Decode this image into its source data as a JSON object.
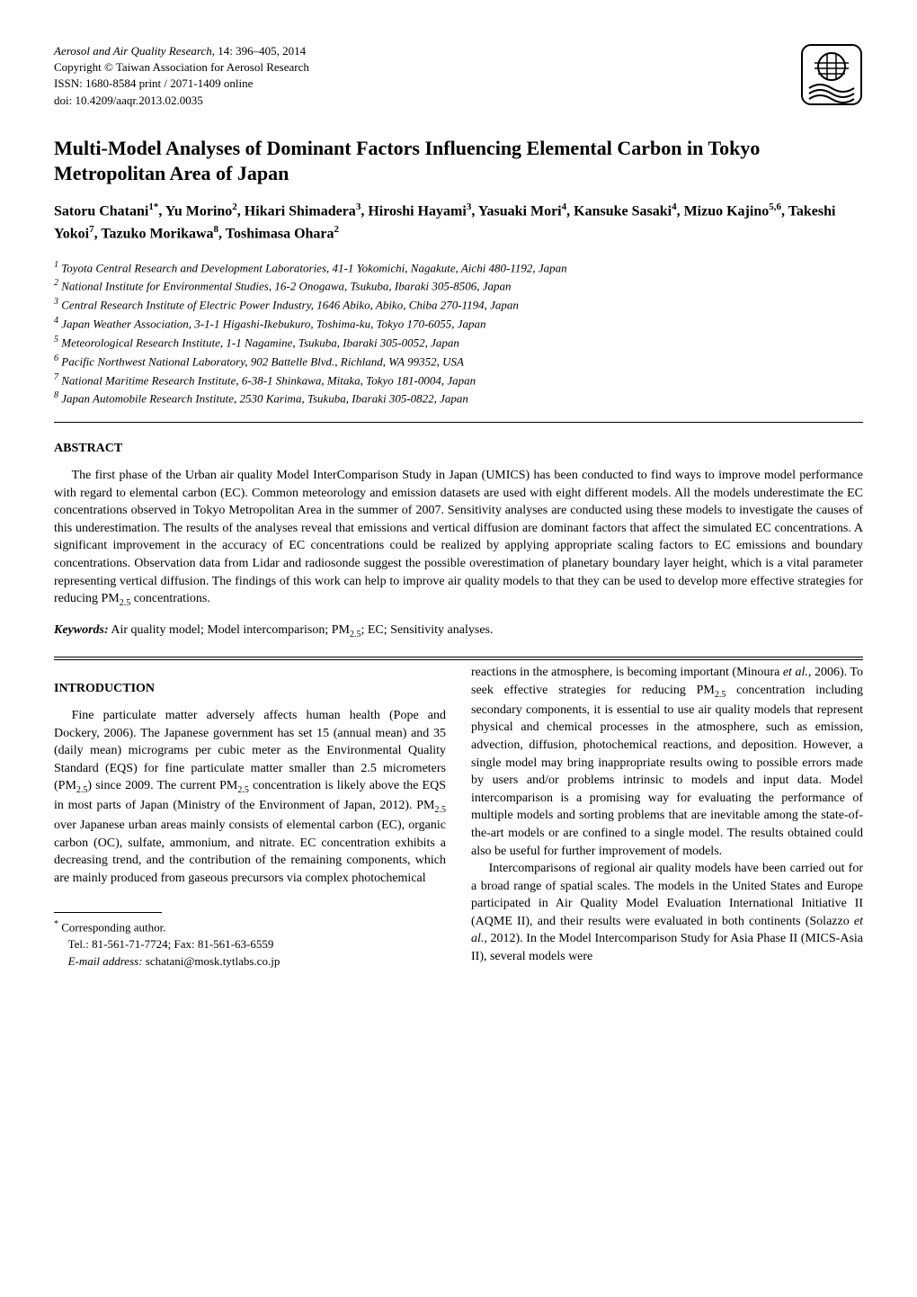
{
  "meta": {
    "journal_ref": "Aerosol and Air Quality Research",
    "vol_pages": ", 14: 396–405, 2014",
    "copyright": "Copyright © Taiwan Association for Aerosol Research",
    "issn": "ISSN: 1680-8584 print / 2071-1409 online",
    "doi": "doi: 10.4209/aaqr.2013.02.0035"
  },
  "title": "Multi-Model Analyses of Dominant Factors Influencing Elemental Carbon in Tokyo Metropolitan Area of Japan",
  "authors_html": "Satoru Chatani<sup>1*</sup>, Yu Morino<sup>2</sup>, Hikari Shimadera<sup>3</sup>, Hiroshi Hayami<sup>3</sup>, Yasuaki Mori<sup>4</sup>, Kansuke Sasaki<sup>4</sup>, Mizuo Kajino<sup>5,6</sup>, Takeshi Yokoi<sup>7</sup>, Tazuko Morikawa<sup>8</sup>, Toshimasa Ohara<sup>2</sup>",
  "affiliations": [
    {
      "n": "1",
      "text": "Toyota Central Research and Development Laboratories, 41-1 Yokomichi, Nagakute, Aichi 480-1192, Japan"
    },
    {
      "n": "2",
      "text": "National Institute for Environmental Studies, 16-2 Onogawa, Tsukuba, Ibaraki 305-8506, Japan"
    },
    {
      "n": "3",
      "text": "Central Research Institute of Electric Power Industry, 1646 Abiko, Abiko, Chiba 270-1194, Japan"
    },
    {
      "n": "4",
      "text": "Japan Weather Association, 3-1-1 Higashi-Ikebukuro, Toshima-ku, Tokyo 170-6055, Japan"
    },
    {
      "n": "5",
      "text": "Meteorological Research Institute, 1-1 Nagamine, Tsukuba, Ibaraki 305-0052, Japan"
    },
    {
      "n": "6",
      "text": "Pacific Northwest National Laboratory, 902 Battelle Blvd., Richland, WA 99352, USA"
    },
    {
      "n": "7",
      "text": "National Maritime Research Institute, 6-38-1 Shinkawa, Mitaka, Tokyo 181-0004, Japan"
    },
    {
      "n": "8",
      "text": "Japan Automobile Research Institute, 2530 Karima, Tsukuba, Ibaraki 305-0822, Japan"
    }
  ],
  "headings": {
    "abstract": "ABSTRACT",
    "introduction": "INTRODUCTION"
  },
  "abstract_html": "The first phase of the Urban air quality Model InterComparison Study in Japan (UMICS) has been conducted to find ways to improve model performance with regard to elemental carbon (EC). Common meteorology and emission datasets are used with eight different models. All the models underestimate the EC concentrations observed in Tokyo Metropolitan Area in the summer of 2007. Sensitivity analyses are conducted using these models to investigate the causes of this underestimation. The results of the analyses reveal that emissions and vertical diffusion are dominant factors that affect the simulated EC concentrations. A significant improvement in the accuracy of EC concentrations could be realized by applying appropriate scaling factors to EC emissions and boundary concentrations. Observation data from Lidar and radiosonde suggest the possible overestimation of planetary boundary layer height, which is a vital parameter representing vertical diffusion. The findings of this work can help to improve air quality models to that they can be used to develop more effective strategies for reducing PM<sub>2.5</sub> concentrations.",
  "keywords": {
    "label": "Keywords:",
    "text_html": " Air quality model; Model intercomparison; PM<sub>2.5</sub>; EC; Sensitivity analyses."
  },
  "body": {
    "intro_p1_html": "Fine particulate matter adversely affects human health (Pope and Dockery, 2006). The Japanese government has set 15 (annual mean) and 35 (daily mean) micrograms per cubic meter as the Environmental Quality Standard (EQS) for fine particulate matter smaller than 2.5 micrometers (PM<sub>2.5</sub>) since 2009. The current PM<sub>2.5</sub> concentration is likely above the EQS in most parts of Japan (Ministry of the Environment of Japan, 2012). PM<sub>2.5</sub> over Japanese urban areas mainly consists of elemental carbon (EC), organic carbon (OC), sulfate, ammonium, and nitrate. EC concentration exhibits a decreasing trend, and the contribution of the remaining components, which are mainly produced from gaseous precursors via complex photochemical",
    "intro_p1b_html": "reactions in the atmosphere, is becoming important (Minoura <i>et al.</i>, 2006). To seek effective strategies for reducing PM<sub>2.5</sub> concentration including secondary components, it is essential to use air quality models that represent physical and chemical processes in the atmosphere, such as emission, advection, diffusion, photochemical reactions, and deposition. However, a single model may bring inappropriate results owing to possible errors made by users and/or problems intrinsic to models and input data. Model intercomparison is a promising way for evaluating the performance of multiple models and sorting problems that are inevitable among the state-of-the-art models or are confined to a single model. The results obtained could also be useful for further improvement of models.",
    "intro_p2_html": "Intercomparisons of regional air quality models have been carried out for a broad range of spatial scales. The models in the United States and Europe participated in Air Quality Model Evaluation International Initiative II (AQME II), and their results were evaluated in both continents (Solazzo <i>et al.</i>, 2012). In the Model Intercomparison Study for Asia Phase II (MICS-Asia II), several models were"
  },
  "footnote": {
    "corresponding": "Corresponding author.",
    "tel_fax": "Tel.: 81-561-71-7724; Fax: 81-561-63-6559",
    "email_label": "E-mail address:",
    "email": " schatani@mosk.tytlabs.co.jp"
  },
  "logo": {
    "ring_color": "#000000",
    "bg_color": "#ffffff",
    "stroke_width": 2
  }
}
